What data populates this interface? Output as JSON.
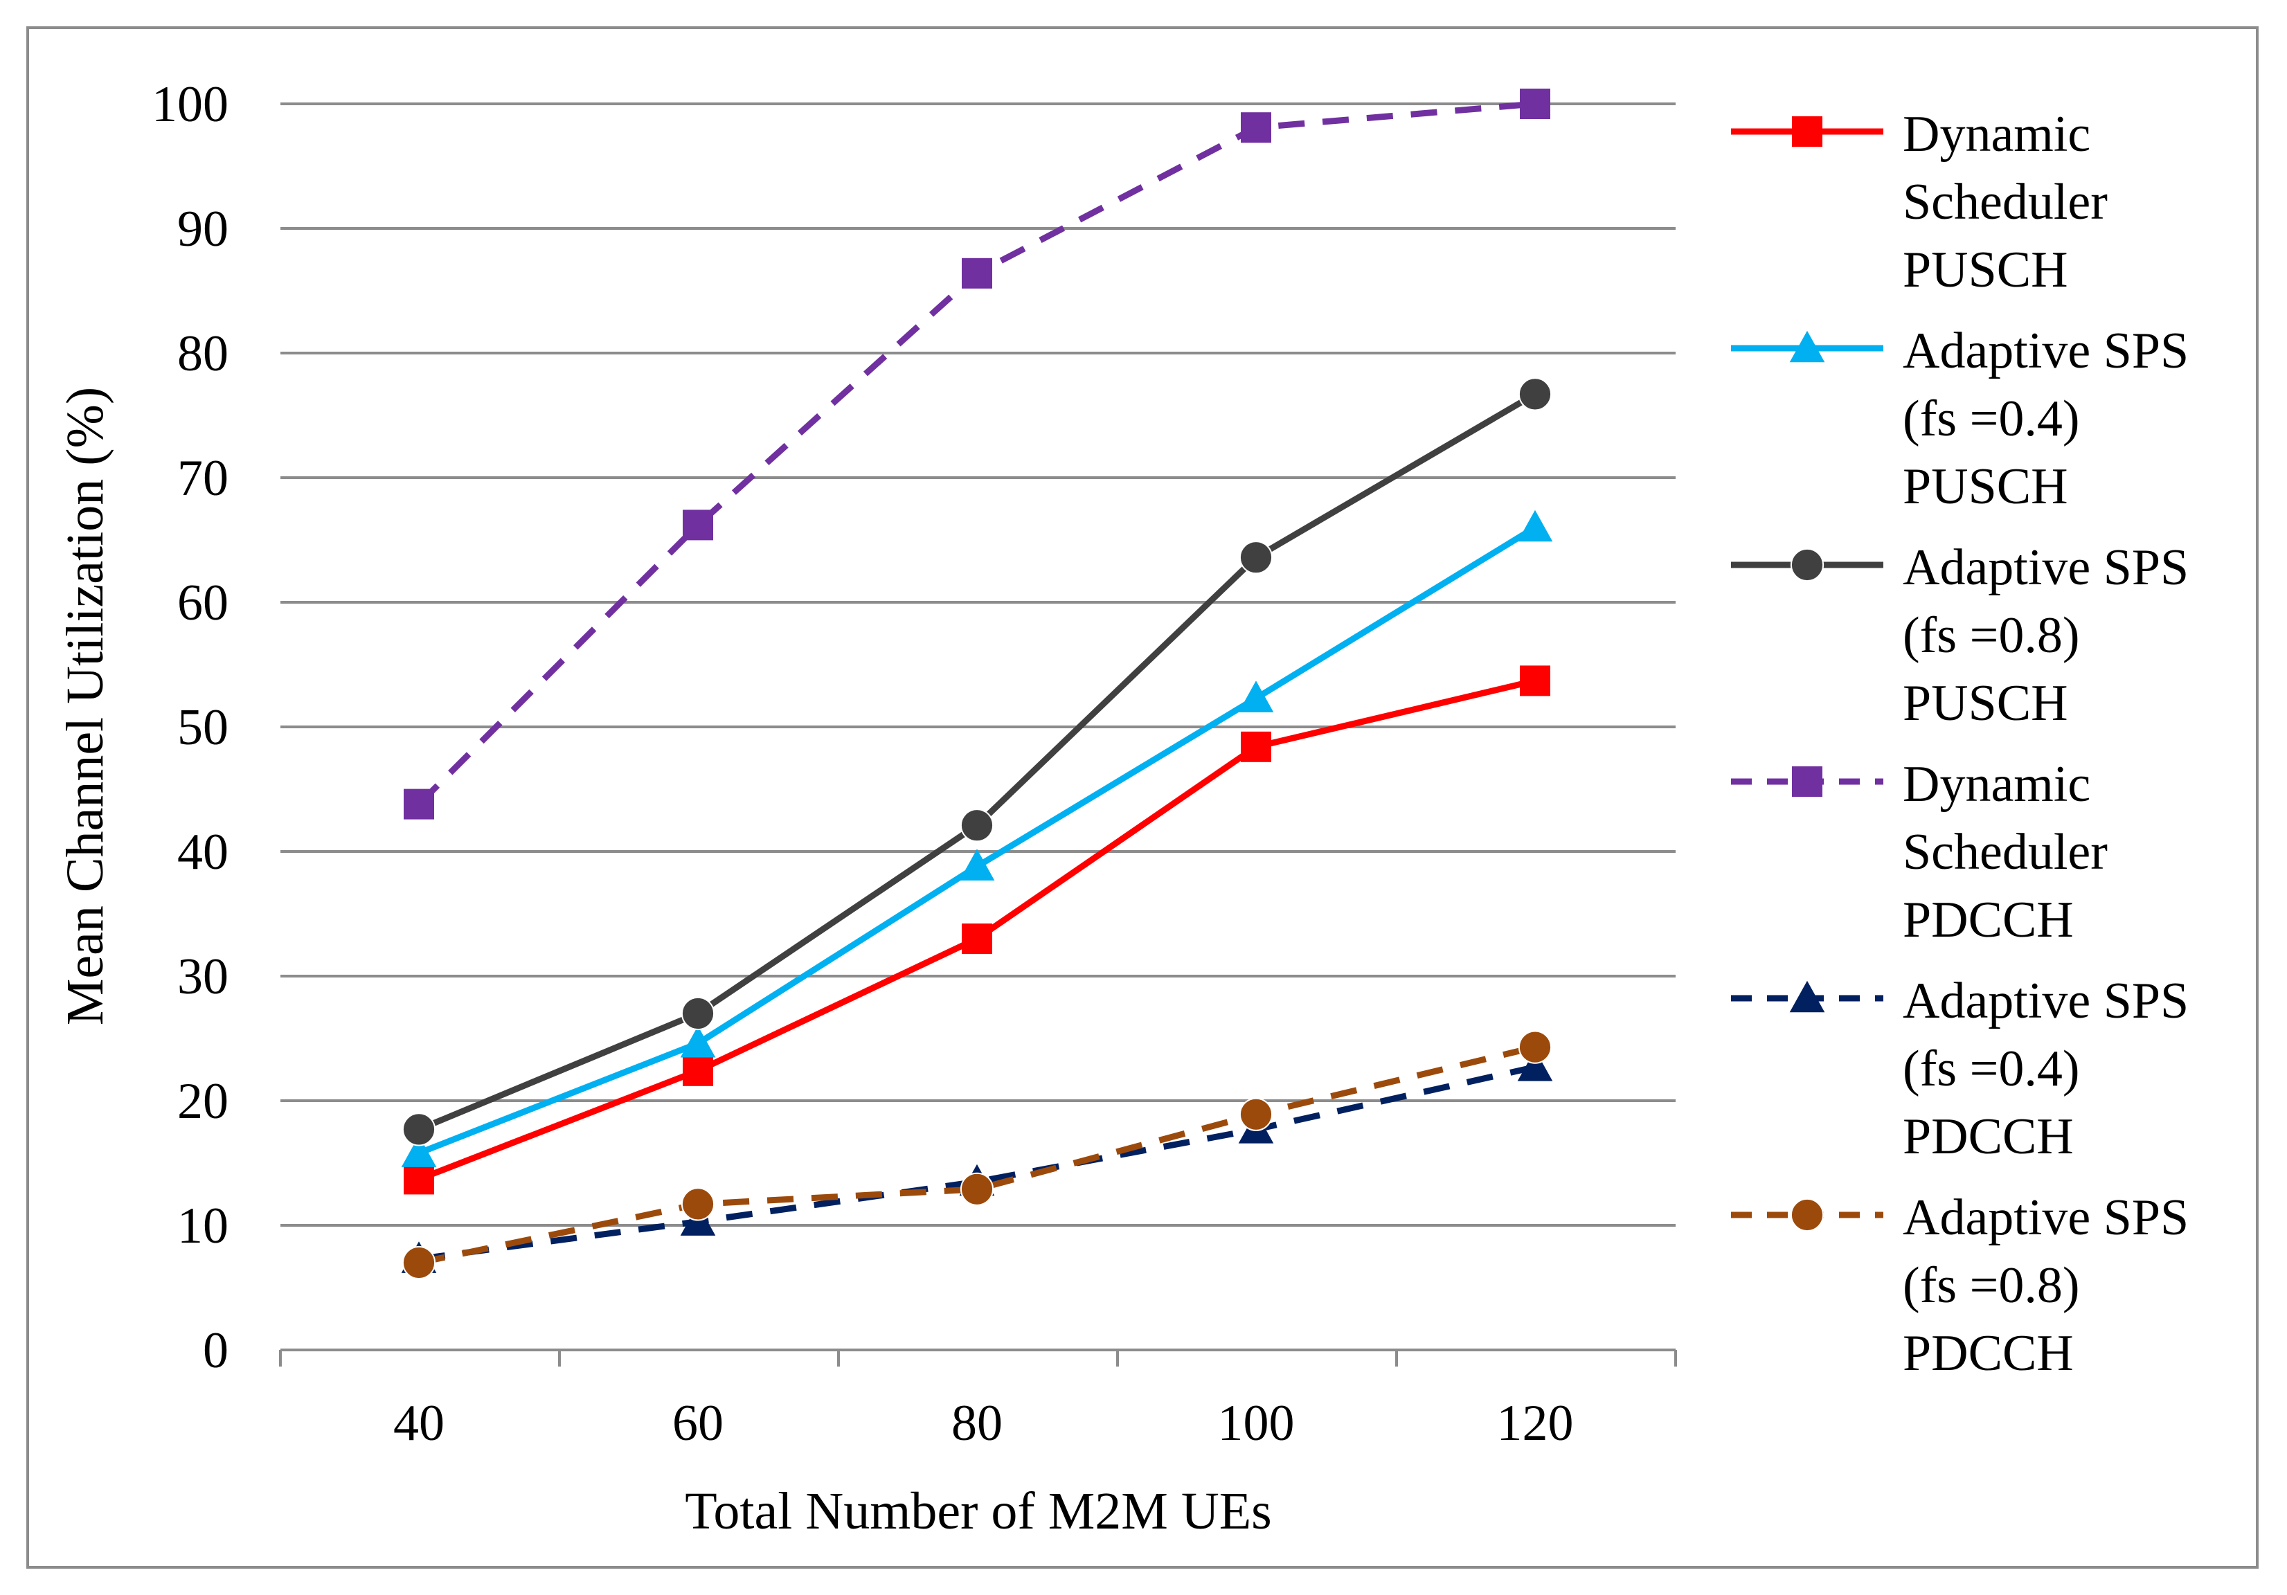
{
  "chart_data": {
    "type": "line",
    "title": "",
    "xlabel": "Total Number of M2M UEs",
    "ylabel": "Mean Channel  Utilization (%)",
    "ylim": [
      0,
      100
    ],
    "yticks": [
      "0",
      "10",
      "20",
      "30",
      "40",
      "50",
      "60",
      "70",
      "80",
      "90",
      "100"
    ],
    "categories": [
      "40",
      "60",
      "80",
      "100",
      "120"
    ],
    "grid": true,
    "legend_position": "right",
    "series": [
      {
        "name": "Dynamic Scheduler PUSCH",
        "legend_lines": [
          "Dynamic",
          "Scheduler",
          "PUSCH"
        ],
        "values": [
          13.7,
          22.4,
          33.0,
          48.4,
          53.7
        ],
        "color": "#ff0000",
        "marker": "square",
        "dash": "solid"
      },
      {
        "name": "Adaptive SPS (fs =0.4) PUSCH",
        "legend_lines": [
          "Adaptive SPS",
          "(fs =0.4)",
          "PUSCH"
        ],
        "values": [
          15.8,
          24.6,
          38.8,
          52.3,
          66.0
        ],
        "color": "#00b0f0",
        "marker": "triangle",
        "dash": "solid"
      },
      {
        "name": "Adaptive SPS (fs =0.8) PUSCH",
        "legend_lines": [
          "Adaptive SPS",
          "(fs =0.8)",
          "PUSCH"
        ],
        "values": [
          17.7,
          27.0,
          42.1,
          63.6,
          76.7
        ],
        "color": "#404040",
        "marker": "circle",
        "dash": "solid"
      },
      {
        "name": "Dynamic Scheduler PDCCH",
        "legend_lines": [
          "Dynamic",
          "Scheduler",
          "PDCCH"
        ],
        "values": [
          43.8,
          66.2,
          86.4,
          98.1,
          100.0
        ],
        "color": "#7030a0",
        "marker": "square",
        "dash": "dashed"
      },
      {
        "name": "Adaptive SPS (fs =0.4) PDCCH",
        "legend_lines": [
          "Adaptive SPS",
          "(fs =0.4)",
          "PDCCH"
        ],
        "values": [
          7.3,
          10.3,
          13.5,
          17.7,
          22.7
        ],
        "color": "#002060",
        "marker": "triangle",
        "dash": "dashed"
      },
      {
        "name": "Adaptive SPS (fs =0.8) PDCCH",
        "legend_lines": [
          "Adaptive SPS",
          "(fs =0.8)",
          "PDCCH"
        ],
        "values": [
          7.0,
          11.7,
          12.9,
          18.9,
          24.3
        ],
        "color": "#9c4a0b",
        "marker": "circle",
        "dash": "dashed"
      }
    ]
  }
}
